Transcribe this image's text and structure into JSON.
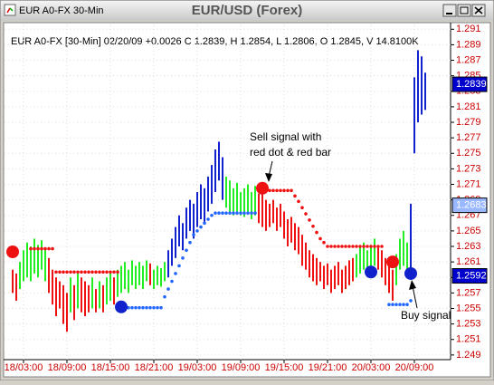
{
  "window_title": "EUR A0-FX 30-Min",
  "chart_data": {
    "type": "range-bar",
    "title": "EUR/USD (Forex)",
    "info": "EUR A0-FX [30-Min] 02/20/09 +0.0026 C 1.2839, H 1.2854, L 1.2806, O 1.2845, V 14.8100K",
    "xlim": [
      -2,
      121
    ],
    "xticks": [
      {
        "value": 3,
        "label": "18/03:00"
      },
      {
        "value": 15,
        "label": "18/09:00"
      },
      {
        "value": 27,
        "label": "18/15:00"
      },
      {
        "value": 39,
        "label": "18/21:00"
      },
      {
        "value": 51,
        "label": "19/03:00"
      },
      {
        "value": 63,
        "label": "19/09:00"
      },
      {
        "value": 75,
        "label": "19/15:00"
      },
      {
        "value": 87,
        "label": "19/21:00"
      },
      {
        "value": 99,
        "label": "20/03:00"
      },
      {
        "value": 111,
        "label": "20/09:00"
      }
    ],
    "ylim": [
      1.2484,
      1.2915
    ],
    "yticks": [
      1.249,
      1.251,
      1.253,
      1.255,
      1.257,
      1.259,
      1.261,
      1.263,
      1.265,
      1.267,
      1.269,
      1.271,
      1.273,
      1.275,
      1.277,
      1.279,
      1.281,
      1.283,
      1.285,
      1.287,
      1.289,
      1.291
    ],
    "grid": true,
    "palette": {
      "R": "#ee1111",
      "G": "#22ee22",
      "B": "#1122cc"
    },
    "bar_colors": [
      "RRGGG",
      "GGGGG",
      "RRRRR",
      "RGRGR",
      "RRGRG",
      "RGGRG",
      "GGGGG",
      "GGGRG",
      "GGGBB",
      "BBBBB",
      "BBBBB",
      "BBBBG",
      "GGGGG",
      "GGGRR",
      "RRRRR",
      "RRRRR",
      "RRRRR",
      "RRRRR",
      "RRRRR",
      "GGGGG",
      "GRRRR",
      "RGGGG",
      "BBBBB"
    ],
    "low": [
      1.257,
      1.256,
      1.2575,
      1.2585,
      1.259,
      1.2585,
      1.2595,
      1.259,
      1.26,
      1.2585,
      1.257,
      1.2555,
      1.254,
      1.255,
      1.253,
      1.252,
      1.2545,
      1.2535,
      1.255,
      1.2545,
      1.254,
      1.2545,
      1.255,
      1.2545,
      1.255,
      1.2545,
      1.2555,
      1.256,
      1.2555,
      1.2565,
      1.257,
      1.2575,
      1.257,
      1.258,
      1.2575,
      1.258,
      1.2575,
      1.2585,
      1.258,
      1.2575,
      1.258,
      1.2578,
      1.2585,
      1.259,
      1.2605,
      1.2615,
      1.263,
      1.2625,
      1.264,
      1.265,
      1.264,
      1.2655,
      1.2665,
      1.266,
      1.2675,
      1.2685,
      1.27,
      1.2715,
      1.269,
      1.268,
      1.2675,
      1.267,
      1.2675,
      1.267,
      1.2668,
      1.2672,
      1.2665,
      1.267,
      1.266,
      1.2655,
      1.265,
      1.2655,
      1.266,
      1.265,
      1.2655,
      1.264,
      1.263,
      1.2635,
      1.2625,
      1.262,
      1.2605,
      1.26,
      1.259,
      1.2585,
      1.258,
      1.2585,
      1.2575,
      1.258,
      1.257,
      1.2575,
      1.258,
      1.257,
      1.2575,
      1.258,
      1.2585,
      1.259,
      1.2595,
      1.26,
      1.2595,
      1.26,
      1.2605,
      1.26,
      1.259,
      1.258,
      1.257,
      1.256,
      1.258,
      1.26,
      1.2605,
      1.2595,
      1.2595,
      1.275,
      1.279,
      1.28,
      1.2806
    ],
    "high": [
      1.26,
      1.2595,
      1.261,
      1.2625,
      1.2635,
      1.263,
      1.264,
      1.2632,
      1.2638,
      1.2628,
      1.2615,
      1.26,
      1.259,
      1.2585,
      1.258,
      1.257,
      1.259,
      1.258,
      1.2595,
      1.259,
      1.2585,
      1.258,
      1.259,
      1.2575,
      1.2585,
      1.258,
      1.259,
      1.2595,
      1.259,
      1.26,
      1.2605,
      1.261,
      1.26,
      1.2612,
      1.2605,
      1.261,
      1.2605,
      1.2612,
      1.2608,
      1.26,
      1.2605,
      1.2602,
      1.261,
      1.2625,
      1.264,
      1.2655,
      1.267,
      1.266,
      1.268,
      1.269,
      1.2685,
      1.27,
      1.271,
      1.2705,
      1.272,
      1.2735,
      1.2755,
      1.2765,
      1.2745,
      1.272,
      1.2715,
      1.2705,
      1.2712,
      1.27,
      1.2705,
      1.271,
      1.27,
      1.2708,
      1.2698,
      1.27,
      1.269,
      1.2685,
      1.269,
      1.268,
      1.2685,
      1.2675,
      1.2665,
      1.2668,
      1.266,
      1.2655,
      1.2645,
      1.2635,
      1.2625,
      1.262,
      1.2615,
      1.261,
      1.2605,
      1.2608,
      1.26,
      1.2605,
      1.261,
      1.26,
      1.2605,
      1.2612,
      1.2615,
      1.262,
      1.263,
      1.2635,
      1.2625,
      1.2632,
      1.264,
      1.263,
      1.2625,
      1.2615,
      1.261,
      1.26,
      1.262,
      1.264,
      1.265,
      1.2635,
      1.2685,
      1.2848,
      1.2883,
      1.2875,
      1.2854
    ],
    "stops": [
      {
        "color": "#ee1111",
        "values": [
          null,
          null,
          null,
          null,
          null,
          1.2627,
          1.2627,
          1.2627,
          1.2627,
          1.2627,
          1.2627,
          1.2627,
          1.2597,
          1.2597,
          1.2597,
          1.2597,
          1.2597,
          1.2597,
          1.2597,
          1.2597,
          1.2597,
          1.2597,
          1.2597,
          1.2597,
          1.2597,
          1.2597,
          1.2597,
          1.2597,
          1.2597,
          1.2597,
          null,
          null,
          null,
          null,
          null,
          null,
          null,
          null,
          null,
          null,
          null,
          null,
          null,
          null,
          null,
          null,
          null,
          null,
          null,
          null,
          null,
          null,
          null,
          null,
          null,
          null,
          null,
          null,
          null,
          null,
          null,
          null,
          null,
          null,
          null,
          null,
          null,
          null,
          null,
          1.2702,
          1.2702,
          1.2702,
          1.2702,
          1.2702,
          1.2702,
          1.2702,
          1.2702,
          1.2702,
          1.2695,
          1.2688,
          1.268,
          1.2672,
          1.2664,
          1.2656,
          1.2648,
          1.264,
          1.2635,
          1.263,
          1.263,
          1.263,
          1.263,
          1.263,
          1.263,
          1.263,
          1.263,
          1.263,
          1.263,
          1.263,
          1.263,
          1.263,
          1.263,
          1.263,
          1.263,
          null,
          null,
          null,
          null,
          null,
          null,
          null,
          null,
          null,
          null,
          null,
          null
        ]
      },
      {
        "color": "#2266ff",
        "values": [
          null,
          null,
          null,
          null,
          null,
          null,
          null,
          null,
          null,
          null,
          null,
          null,
          null,
          null,
          null,
          null,
          null,
          null,
          null,
          null,
          null,
          null,
          null,
          null,
          null,
          null,
          null,
          null,
          null,
          1.2551,
          1.2551,
          1.2551,
          1.2551,
          1.2551,
          1.2551,
          1.2551,
          1.2551,
          1.2551,
          1.2551,
          1.2551,
          1.2551,
          1.2551,
          1.2565,
          1.2575,
          1.2585,
          1.2595,
          1.2605,
          1.2615,
          1.2625,
          1.2635,
          1.2645,
          1.265,
          1.2655,
          1.266,
          1.2665,
          1.267,
          1.2673,
          1.2673,
          1.2673,
          1.2673,
          1.2673,
          1.2673,
          1.2673,
          1.2673,
          1.2673,
          1.2673,
          1.2673,
          1.2673,
          null,
          null,
          null,
          null,
          null,
          null,
          null,
          null,
          null,
          null,
          null,
          null,
          null,
          null,
          null,
          null,
          null,
          null,
          null,
          null,
          null,
          null,
          null,
          null,
          null,
          null,
          null,
          null,
          null,
          null,
          null,
          null,
          null,
          null,
          null,
          null,
          1.2555,
          1.2555,
          1.2555,
          1.2555,
          1.2555,
          1.2555,
          1.256,
          null,
          null,
          null,
          null
        ]
      }
    ],
    "signals": [
      {
        "x": 0,
        "value": 1.2623,
        "color": "#ee1111"
      },
      {
        "x": 30,
        "value": 1.2552,
        "color": "#1122cc"
      },
      {
        "x": 69,
        "value": 1.2705,
        "color": "#ee1111"
      },
      {
        "x": 99,
        "value": 1.2597,
        "color": "#1122cc"
      },
      {
        "x": 105,
        "value": 1.261,
        "color": "#ee1111"
      },
      {
        "x": 110,
        "value": 1.2595,
        "color": "#1122cc"
      }
    ],
    "price_labels": [
      {
        "value": 1.2839,
        "color": "#0000cc"
      },
      {
        "value": 1.2683,
        "color": "#9ab8ff"
      },
      {
        "value": 1.2592,
        "color": "#0000cc"
      }
    ],
    "annotations": [
      {
        "lines": [
          "Sell signal with",
          "red dot & red bar"
        ]
      },
      {
        "lines": [
          "Buy signal"
        ]
      }
    ]
  }
}
